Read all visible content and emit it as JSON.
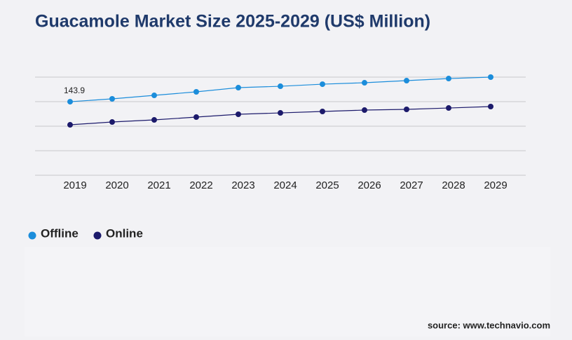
{
  "chart_data": {
    "type": "line",
    "title": "Guacamole Market Size 2025-2029 (US$ Million)",
    "categories": [
      "2019",
      "2020",
      "2021",
      "2022",
      "2023",
      "2024",
      "2025",
      "2026",
      "2027",
      "2028",
      "2029"
    ],
    "series": [
      {
        "name": "Offline",
        "color": "#1b8ddb",
        "values": [
          143.9,
          149.5,
          156.3,
          163.2,
          171.4,
          174.1,
          178.2,
          181.0,
          185.1,
          189.2,
          192.0
        ]
      },
      {
        "name": "Online",
        "color": "#1c1a6b",
        "values": [
          98.7,
          104.2,
          108.3,
          113.8,
          119.3,
          122.0,
          124.8,
          127.5,
          128.9,
          131.6,
          134.4
        ]
      }
    ],
    "labeled_point": {
      "series": 0,
      "index": 0
    },
    "ylim": [
      0,
      192
    ],
    "yticks": [
      0,
      48,
      96,
      144,
      192
    ],
    "grid": true,
    "source": "source: www.technavio.com"
  }
}
